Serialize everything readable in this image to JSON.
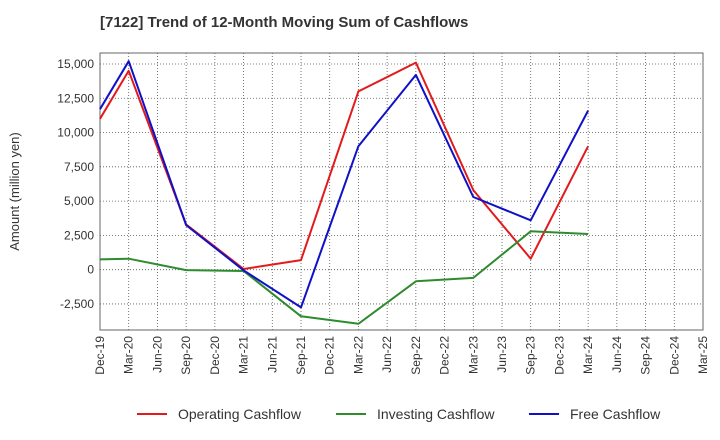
{
  "chart_data": {
    "type": "line",
    "title": "[7122]  Trend of 12-Month Moving Sum of Cashflows",
    "ylabel": "Amount (million yen)",
    "xlabel": "",
    "ylim": [
      -4400,
      15800
    ],
    "yticks": [
      15000,
      12500,
      10000,
      7500,
      5000,
      2500,
      0,
      -2500
    ],
    "ytick_labels": [
      "15,000",
      "12,500",
      "10,000",
      "7,500",
      "5,000",
      "2,500",
      "0",
      "-2,500"
    ],
    "categories": [
      "Dec-19",
      "Mar-20",
      "Jun-20",
      "Sep-20",
      "Dec-20",
      "Mar-21",
      "Jun-21",
      "Sep-21",
      "Dec-21",
      "Mar-22",
      "Jun-22",
      "Sep-22",
      "Dec-22",
      "Mar-23",
      "Jun-23",
      "Sep-23",
      "Dec-23",
      "Mar-24",
      "Jun-24",
      "Sep-24",
      "Dec-24",
      "Mar-25"
    ],
    "grid": true,
    "legend_position": "bottom",
    "series": [
      {
        "name": "Operating Cashflow",
        "color": "#e31a1c",
        "values": [
          11000,
          14500,
          null,
          3300,
          null,
          50,
          null,
          700,
          null,
          13000,
          null,
          15100,
          null,
          5800,
          null,
          800,
          null,
          9000,
          null,
          null,
          null,
          null
        ]
      },
      {
        "name": "Investing Cashflow",
        "color": "#2e8b2e",
        "values": [
          750,
          800,
          null,
          -30,
          null,
          -100,
          null,
          -3400,
          null,
          -3950,
          null,
          -850,
          null,
          -600,
          null,
          2800,
          null,
          2600,
          null,
          null,
          null,
          null
        ]
      },
      {
        "name": "Free Cashflow",
        "color": "#1010c8",
        "values": [
          11700,
          15200,
          null,
          3250,
          null,
          -50,
          null,
          -2750,
          null,
          9000,
          null,
          14200,
          null,
          5300,
          null,
          3600,
          null,
          11600,
          null,
          null,
          null,
          null
        ]
      }
    ]
  }
}
